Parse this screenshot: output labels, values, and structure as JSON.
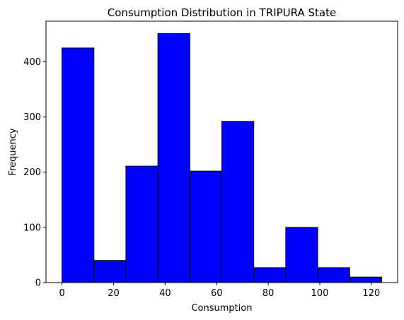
{
  "chart_data": {
    "type": "bar",
    "title": "Consumption Distribution in TRIPURA State",
    "xlabel": "Consumption",
    "ylabel": "Frequency",
    "bin_edges": [
      0,
      12.4,
      24.8,
      37.2,
      49.6,
      62.0,
      74.4,
      86.8,
      99.2,
      111.6,
      124.0
    ],
    "values": [
      425,
      40,
      211,
      451,
      202,
      292,
      27,
      100,
      27,
      10
    ],
    "xlim": [
      -6.2,
      130.2
    ],
    "ylim": [
      0,
      473.5
    ],
    "xticks": [
      0,
      20,
      40,
      60,
      80,
      100,
      120
    ],
    "xtick_labels": [
      "0",
      "20",
      "40",
      "60",
      "80",
      "100",
      "120"
    ],
    "yticks": [
      0,
      100,
      200,
      300,
      400
    ],
    "ytick_labels": [
      "0",
      "100",
      "200",
      "300",
      "400"
    ],
    "bar_color": "#0000ff",
    "edge_color": "#000000",
    "grid": false,
    "legend": "none"
  }
}
